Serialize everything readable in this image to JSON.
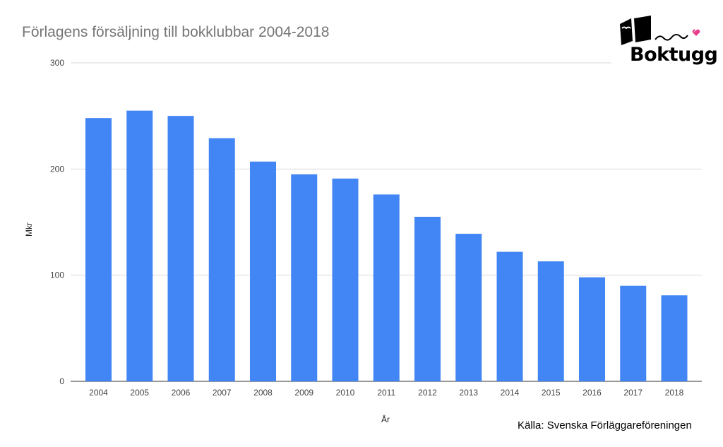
{
  "chart_data": {
    "type": "bar",
    "title": "Förlagens försäljning till bokklubbar 2004-2018",
    "xlabel": "År",
    "ylabel": "Mkr",
    "categories": [
      "2004",
      "2005",
      "2006",
      "2007",
      "2008",
      "2009",
      "2010",
      "2011",
      "2012",
      "2013",
      "2014",
      "2015",
      "2016",
      "2017",
      "2018"
    ],
    "values": [
      248,
      255,
      250,
      229,
      207,
      195,
      191,
      176,
      155,
      139,
      122,
      113,
      98,
      90,
      81
    ],
    "ylim": [
      0,
      300
    ],
    "yticks": [
      0,
      100,
      200,
      300
    ],
    "bar_color": "#4285f4",
    "grid": true,
    "legend": "none"
  },
  "logo": {
    "text": "Boktugg"
  },
  "source": "Källa: Svenska Förläggareföreningen"
}
